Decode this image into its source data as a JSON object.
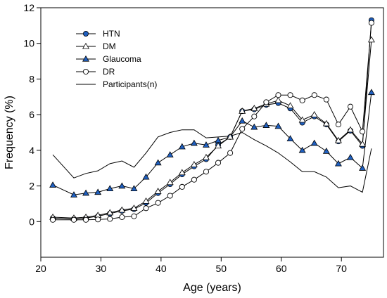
{
  "chart_data": {
    "type": "line",
    "xlabel": "Age (years)",
    "ylabel": "Frequency (%)",
    "xlim": [
      20,
      77
    ],
    "ylim": [
      -2,
      12
    ],
    "xticks": [
      20,
      30,
      40,
      50,
      60,
      70
    ],
    "yticks": [
      0,
      2,
      4,
      6,
      8,
      10,
      12
    ],
    "grid": false,
    "legend_position": "top-left",
    "x": [
      22,
      25.5,
      27.5,
      29.5,
      31.5,
      33.5,
      35.5,
      37.5,
      39.5,
      41.5,
      43.5,
      45.5,
      47.5,
      49.5,
      51.5,
      53.5,
      55.5,
      57.5,
      59.5,
      61.5,
      63.5,
      65.5,
      67.5,
      69.5,
      71.5,
      73.5,
      75
    ],
    "series": [
      {
        "name": "HTN",
        "marker": "circle-filled",
        "color": "#1f5fbf",
        "values": [
          0.2,
          0.15,
          0.2,
          0.3,
          0.45,
          0.6,
          0.7,
          1.05,
          1.6,
          2.1,
          2.65,
          3.1,
          3.5,
          4.3,
          4.75,
          6.2,
          6.3,
          6.55,
          6.65,
          6.35,
          5.55,
          5.9,
          5.45,
          4.5,
          5.1,
          4.25,
          11.3
        ]
      },
      {
        "name": "DM",
        "marker": "triangle-open",
        "color": "#000000",
        "values": [
          0.25,
          0.2,
          0.25,
          0.35,
          0.5,
          0.65,
          0.75,
          1.15,
          1.7,
          2.2,
          2.75,
          3.2,
          3.6,
          4.25,
          4.75,
          6.2,
          6.35,
          6.6,
          6.8,
          6.5,
          5.7,
          6.0,
          5.5,
          4.55,
          5.15,
          4.35,
          10.2
        ]
      },
      {
        "name": "Glaucoma",
        "marker": "triangle-filled",
        "color": "#1f5fbf",
        "values": [
          2.05,
          1.5,
          1.6,
          1.65,
          1.85,
          2.0,
          1.85,
          2.5,
          3.3,
          3.75,
          4.2,
          4.4,
          4.3,
          4.55,
          4.75,
          5.65,
          5.3,
          5.4,
          5.35,
          4.65,
          4.0,
          4.4,
          3.95,
          3.25,
          3.6,
          3.0,
          7.25
        ]
      },
      {
        "name": "DR",
        "marker": "circle-open",
        "color": "#000000",
        "values": [
          0.1,
          0.1,
          0.1,
          0.12,
          0.15,
          0.25,
          0.3,
          0.75,
          1.05,
          1.45,
          1.95,
          2.35,
          2.8,
          3.3,
          3.85,
          5.2,
          5.9,
          6.7,
          7.1,
          7.1,
          6.8,
          7.1,
          6.85,
          5.45,
          6.45,
          5.05,
          11.15
        ]
      },
      {
        "name": "Participants(n)",
        "marker": "none",
        "color": "#000000",
        "values": [
          3.75,
          2.45,
          2.7,
          2.85,
          3.25,
          3.4,
          3.05,
          3.85,
          4.75,
          5.0,
          5.15,
          5.15,
          4.7,
          4.75,
          4.8,
          5.0,
          4.6,
          4.25,
          3.85,
          3.35,
          2.8,
          2.8,
          2.5,
          1.9,
          2.0,
          1.65,
          4.1
        ]
      }
    ]
  }
}
